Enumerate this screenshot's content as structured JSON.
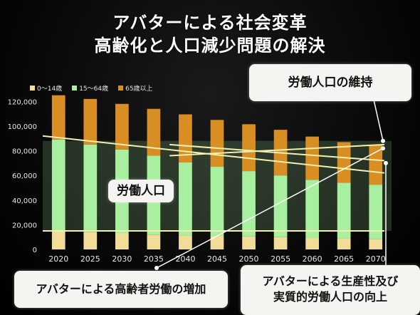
{
  "title_line1": "アバターによる社会変革",
  "title_line2": "高齢化と人口減少問題の解決",
  "callouts": {
    "maintain": "労働人口の維持",
    "workforce": "労働人口",
    "elderly": "アバターによる高齢者労働の増加",
    "productivity_line1": "アバターによる生産性及び",
    "productivity_line2": "実質的労働人口の向上"
  },
  "colors": {
    "age_0_14": "#f2dd98",
    "age_15_64": "#a8f0a0",
    "age_65_plus": "#d88e22",
    "trend_line": "#f3f0b0",
    "background": "#000000"
  },
  "chart_data": {
    "type": "bar",
    "stacked": true,
    "categories": [
      "2020",
      "2025",
      "2030",
      "2035",
      "2040",
      "2045",
      "2050",
      "2055",
      "2060",
      "2065",
      "2070"
    ],
    "series": [
      {
        "name": "0～14歳",
        "values": [
          15000,
          14000,
          13000,
          12000,
          11500,
          11000,
          10500,
          10000,
          9500,
          9000,
          8500
        ]
      },
      {
        "name": "15～64歳",
        "values": [
          74000,
          71000,
          68000,
          64000,
          59000,
          56000,
          53000,
          50000,
          47000,
          45000,
          44000
        ]
      },
      {
        "name": "65歳以上",
        "values": [
          36000,
          37000,
          37000,
          38000,
          39000,
          38000,
          38000,
          37000,
          35000,
          33000,
          32000
        ]
      }
    ],
    "yticks": [
      "0",
      "20,000",
      "40,000",
      "60,000",
      "80,000",
      "100,000",
      "120,000"
    ],
    "ylim": [
      0,
      130000
    ],
    "legend_position": "top-left",
    "grid": false
  }
}
